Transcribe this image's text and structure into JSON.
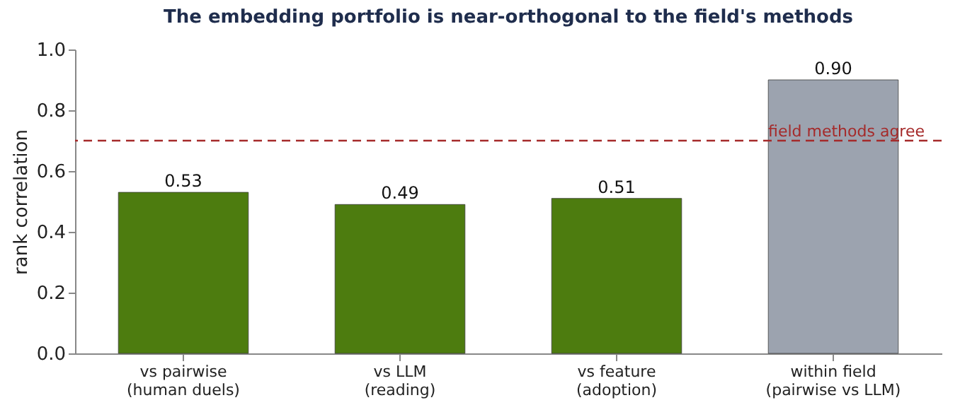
{
  "chart_data": {
    "type": "bar",
    "title": "The embedding portfolio is near-orthogonal to the field's methods",
    "ylabel": "rank correlation",
    "categories": [
      "vs pairwise\n(human duels)",
      "vs LLM\n(reading)",
      "vs feature\n(adoption)",
      "within field\n(pairwise vs LLM)"
    ],
    "values": [
      0.53,
      0.49,
      0.51,
      0.9
    ],
    "value_labels": [
      "0.53",
      "0.49",
      "0.51",
      "0.90"
    ],
    "colors": [
      "#4d7c0f",
      "#4d7c0f",
      "#4d7c0f",
      "#9ca3af"
    ],
    "ylim": [
      0,
      1
    ],
    "yticks": [
      {
        "value": 0,
        "label": "0.0"
      },
      {
        "value": 0.2,
        "label": "0.2"
      },
      {
        "value": 0.4,
        "label": "0.4"
      },
      {
        "value": 0.6,
        "label": "0.6"
      },
      {
        "value": 0.8,
        "label": "0.8"
      },
      {
        "value": 1,
        "label": "1.0"
      }
    ],
    "grid": false,
    "ref_lines": [
      {
        "axis": "y",
        "value": 0.7,
        "label": "field methods agree",
        "color": "#a52a2a",
        "line_style": "dashed"
      }
    ]
  }
}
